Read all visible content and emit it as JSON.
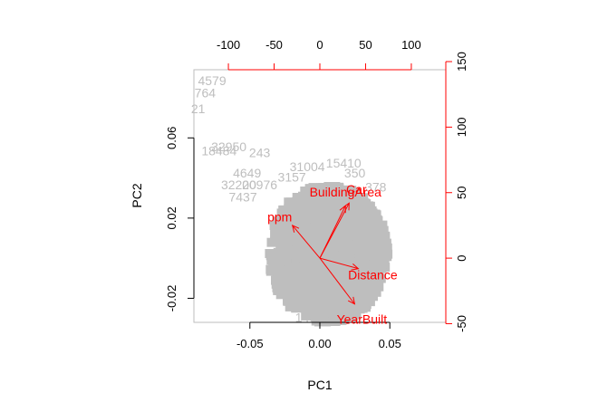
{
  "chart_data": {
    "type": "scatter",
    "title": "",
    "xlabel": "PC1",
    "ylabel": "PC2",
    "xlim": [
      -0.09,
      0.09
    ],
    "ylim": [
      -0.032,
      0.094
    ],
    "x_ticks": [
      -0.05,
      0.0,
      0.05
    ],
    "y_ticks": [
      -0.02,
      0.02,
      0.06
    ],
    "top_ticks": [
      -100,
      -50,
      0,
      50,
      100
    ],
    "right_ticks": [
      -50,
      0,
      50,
      100,
      150
    ],
    "loading_xlim": [
      -137.7,
      137.7
    ],
    "loading_ylim": [
      -49,
      143.8
    ],
    "grid": false,
    "observation_color": "#bebebe",
    "variable_color": "#ff0000",
    "observations": [
      {
        "label": "4579",
        "x": -0.077,
        "y": 0.088
      },
      {
        "label": "764",
        "x": -0.082,
        "y": 0.082
      },
      {
        "label": "21",
        "x": -0.087,
        "y": 0.074
      },
      {
        "label": "32950",
        "x": -0.065,
        "y": 0.055
      },
      {
        "label": "18484",
        "x": -0.072,
        "y": 0.053
      },
      {
        "label": "243",
        "x": -0.043,
        "y": 0.052
      },
      {
        "label": "4649",
        "x": -0.052,
        "y": 0.042
      },
      {
        "label": "32200",
        "x": -0.058,
        "y": 0.036
      },
      {
        "label": "20976",
        "x": -0.043,
        "y": 0.036
      },
      {
        "label": "7437",
        "x": -0.055,
        "y": 0.03
      },
      {
        "label": "3157",
        "x": -0.02,
        "y": 0.04
      },
      {
        "label": "31004",
        "x": -0.009,
        "y": 0.045
      },
      {
        "label": "15410",
        "x": 0.017,
        "y": 0.047
      },
      {
        "label": "350",
        "x": 0.025,
        "y": 0.042
      },
      {
        "label": "378",
        "x": 0.04,
        "y": 0.035
      },
      {
        "label": "14989",
        "x": -0.005,
        "y": -0.03
      }
    ],
    "variables": [
      {
        "name": "BuildingArea",
        "x": 28,
        "y": 40
      },
      {
        "name": "Car",
        "x": 32,
        "y": 42
      },
      {
        "name": "ppm",
        "x": -30,
        "y": 25
      },
      {
        "name": "Distance",
        "x": 42,
        "y": -8
      },
      {
        "name": "YearBuilt",
        "x": 38,
        "y": -35
      }
    ]
  }
}
